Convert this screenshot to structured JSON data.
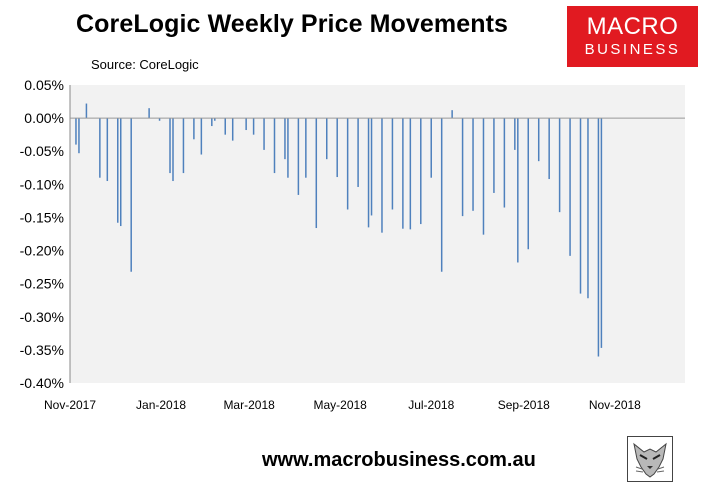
{
  "title": "CoreLogic Weekly Price Movements",
  "source": "Source: CoreLogic",
  "logo": {
    "line1": "MACRO",
    "line2": "BUSINESS",
    "color": "#e11a21"
  },
  "footer_url": "www.macrobusiness.com.au",
  "colors": {
    "bar": "#4f81bd",
    "plot_bg": "#f2f2f2"
  },
  "chart_data": {
    "type": "bar",
    "title": "CoreLogic Weekly Price Movements",
    "xlabel": "",
    "ylabel": "",
    "ylim": [
      -0.004,
      0.0005
    ],
    "y_tick_values": [
      0.0005,
      0,
      -0.0005,
      -0.001,
      -0.0015,
      -0.002,
      -0.0025,
      -0.003,
      -0.0035,
      -0.004
    ],
    "y_tick_labels": [
      "0.05%",
      "0.00%",
      "-0.05%",
      "-0.10%",
      "-0.15%",
      "-0.20%",
      "-0.25%",
      "-0.30%",
      "-0.35%",
      "-0.40%"
    ],
    "x_tick_labels": [
      "Nov-2017",
      "Jan-2018",
      "Mar-2018",
      "May-2018",
      "Jul-2018",
      "Sep-2018",
      "Nov-2018"
    ],
    "grid": false,
    "legend": "none",
    "x": [
      "2017-11-05",
      "2017-11-07",
      "2017-11-12",
      "2017-11-14",
      "2017-11-19",
      "2017-11-21",
      "2017-11-26",
      "2017-11-28",
      "2017-12-03",
      "2017-12-05",
      "2017-12-10",
      "2017-12-12",
      "2017-12-17",
      "2017-12-19",
      "2017-12-24",
      "2017-12-26",
      "2017-12-31",
      "2018-01-02",
      "2018-01-07",
      "2018-01-09",
      "2018-01-14",
      "2018-01-16",
      "2018-01-21",
      "2018-01-23",
      "2018-01-28",
      "2018-01-30",
      "2018-02-04",
      "2018-02-06",
      "2018-02-11",
      "2018-02-13",
      "2018-02-18",
      "2018-02-20",
      "2018-02-25",
      "2018-02-27",
      "2018-03-04",
      "2018-03-06",
      "2018-03-11",
      "2018-03-13",
      "2018-03-18",
      "2018-03-20",
      "2018-03-25",
      "2018-03-27",
      "2018-04-01",
      "2018-04-03",
      "2018-04-08",
      "2018-04-10",
      "2018-04-15",
      "2018-04-17",
      "2018-04-22",
      "2018-04-24",
      "2018-04-29",
      "2018-05-01",
      "2018-05-06",
      "2018-05-08",
      "2018-05-13",
      "2018-05-15",
      "2018-05-20",
      "2018-05-22",
      "2018-05-27",
      "2018-05-29",
      "2018-06-03",
      "2018-06-05",
      "2018-06-10",
      "2018-06-12",
      "2018-06-17",
      "2018-06-19",
      "2018-06-24",
      "2018-06-26",
      "2018-07-01",
      "2018-07-03",
      "2018-07-08",
      "2018-07-10",
      "2018-07-15",
      "2018-07-17",
      "2018-07-22",
      "2018-07-24",
      "2018-07-29",
      "2018-07-31",
      "2018-08-05",
      "2018-08-07",
      "2018-08-12",
      "2018-08-14",
      "2018-08-19",
      "2018-08-21",
      "2018-08-26",
      "2018-08-28",
      "2018-09-02",
      "2018-09-04",
      "2018-09-09",
      "2018-09-11",
      "2018-09-16",
      "2018-09-18",
      "2018-09-23",
      "2018-09-25",
      "2018-09-30",
      "2018-10-02",
      "2018-10-07",
      "2018-10-09",
      "2018-10-14",
      "2018-10-16",
      "2018-10-21",
      "2018-10-23",
      "2018-10-28",
      "2018-10-30",
      "2018-11-04",
      "2018-11-06",
      "2018-11-11",
      "2018-11-13",
      "2018-11-18",
      "2018-11-20",
      "2018-11-25",
      "2018-11-27",
      "2018-12-02",
      "2018-12-04",
      "2018-12-09",
      "2018-12-11",
      "2018-12-16"
    ],
    "values": [
      -0.0004,
      -0.00053,
      0.00022,
      0,
      0,
      -0.0009,
      -0.00095,
      0,
      -0.00158,
      -0.00163,
      0,
      -0.00232,
      0,
      0,
      0.00015,
      0,
      -4e-05,
      0,
      -0.00083,
      -0.00095,
      0,
      -0.00083,
      0,
      -0.00032,
      -0.00055,
      0,
      -0.00012,
      -4e-05,
      0,
      -0.00025,
      -0.00034,
      0,
      0,
      -0.00018,
      -0.00025,
      0,
      -0.00048,
      0,
      -0.00083,
      0,
      -0.00062,
      -0.0009,
      0,
      -0.00116,
      -0.0009,
      0,
      -0.00166,
      0,
      -0.00062,
      0,
      -0.00089,
      0,
      -0.00138,
      0,
      -0.00104,
      0,
      -0.00165,
      -0.00147,
      0,
      -0.00173,
      0,
      -0.00138,
      0,
      -0.00167,
      -0.00168,
      0,
      -0.0016,
      0,
      -0.0009,
      0,
      -0.00232,
      0,
      0.00012,
      0,
      -0.00148,
      0,
      -0.0014,
      0,
      -0.00176,
      0,
      -0.00113,
      0,
      -0.00135,
      0,
      -0.00048,
      -0.00218,
      0,
      -0.00198,
      0,
      -0.00065,
      0,
      -0.00092,
      0,
      -0.00142,
      0,
      -0.00208,
      0,
      -0.00265,
      -0.00272,
      0,
      -0.0036,
      -0.00347,
      0,
      0,
      0,
      0,
      0,
      0,
      0,
      0,
      0,
      0,
      0,
      0,
      0,
      0,
      0
    ],
    "bar_count_note": ""
  }
}
